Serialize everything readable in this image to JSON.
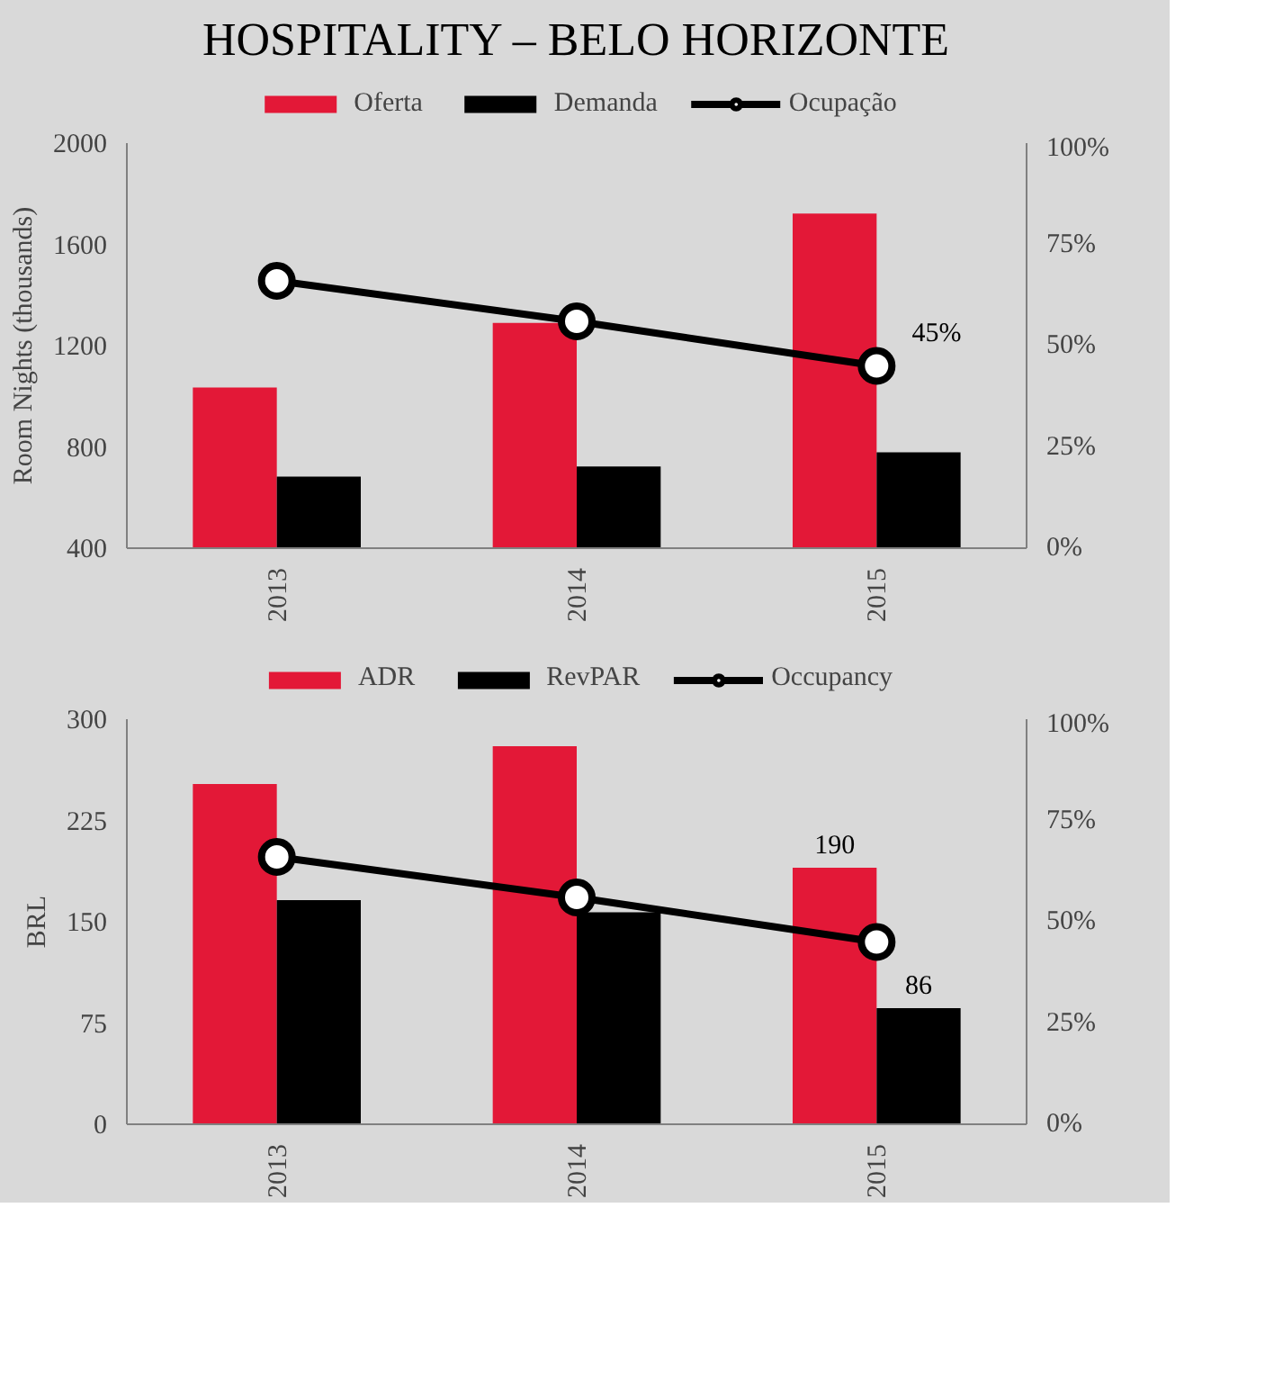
{
  "chart_data": [
    {
      "type": "bar",
      "title": "HOSPITALITY – BELO HORIZONTE",
      "ylabel": "Room Nights (thousands)",
      "categories": [
        "2013",
        "2014",
        "2015"
      ],
      "series": [
        {
          "name": "Oferta",
          "color": "#e31837",
          "values": [
            1035,
            1290,
            1722
          ]
        },
        {
          "name": "Demanda",
          "color": "#000000",
          "values": [
            683,
            723,
            779
          ]
        },
        {
          "name": "Ocupação",
          "type": "line",
          "axis": "y2",
          "color": "#000000",
          "marker": "circle",
          "values": [
            66,
            56,
            45
          ],
          "value_labels": [
            null,
            null,
            "45%"
          ]
        }
      ],
      "ylim": [
        400,
        2000
      ],
      "yticks": [
        400,
        800,
        1200,
        1600,
        2000
      ],
      "y2lim": [
        0,
        100
      ],
      "y2ticks": [
        {
          "value": 0,
          "label": "0%"
        },
        {
          "value": 25,
          "label": "25%"
        },
        {
          "value": 50,
          "label": "50%"
        },
        {
          "value": 75,
          "label": "75%"
        },
        {
          "value": 100,
          "label": "100%"
        }
      ],
      "legend": "top",
      "grid": false
    },
    {
      "type": "bar",
      "ylabel": "BRL",
      "categories": [
        "2013",
        "2014",
        "2015"
      ],
      "series": [
        {
          "name": "ADR",
          "color": "#e31837",
          "values": [
            252,
            280,
            190
          ],
          "value_labels": [
            null,
            null,
            "190"
          ]
        },
        {
          "name": "RevPAR",
          "color": "#000000",
          "values": [
            166,
            157,
            86
          ],
          "value_labels": [
            null,
            null,
            "86"
          ]
        },
        {
          "name": "Occupancy",
          "type": "line",
          "axis": "y2",
          "color": "#000000",
          "marker": "circle",
          "values": [
            66,
            56,
            45
          ]
        }
      ],
      "ylim": [
        0,
        300
      ],
      "yticks": [
        0,
        75,
        150,
        225,
        300
      ],
      "y2lim": [
        0,
        100
      ],
      "y2ticks": [
        {
          "value": 0,
          "label": "0%"
        },
        {
          "value": 25,
          "label": "25%"
        },
        {
          "value": 50,
          "label": "50%"
        },
        {
          "value": 75,
          "label": "75%"
        },
        {
          "value": 100,
          "label": "100%"
        }
      ],
      "legend": "top",
      "grid": false
    }
  ]
}
